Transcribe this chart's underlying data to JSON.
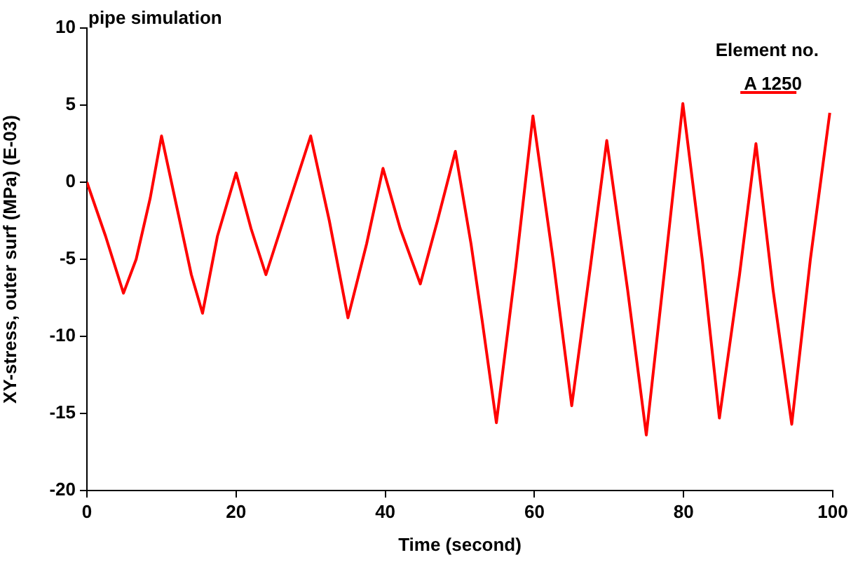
{
  "chart_data": {
    "type": "line",
    "title": "pipe simulation",
    "xlabel": "Time (second)",
    "ylabel": "XY-stress, outer surf (MPa) (E-03)",
    "legend_title": "Element no.",
    "legend": "top right",
    "grid": false,
    "marker": "none",
    "line_style": "solid",
    "xlim": [
      0,
      100
    ],
    "xticks": [
      0,
      20,
      40,
      60,
      80,
      100
    ],
    "ylim": [
      -20,
      10
    ],
    "yticks": [
      -20,
      -15,
      -10,
      -5,
      0,
      5,
      10
    ],
    "series": [
      {
        "name": "A 1250",
        "color": "#ff0000",
        "x": [
          0,
          2.5,
          4.9,
          6.6,
          8.5,
          10,
          12,
          14,
          15.5,
          17.5,
          20,
          22,
          24,
          26,
          28,
          30,
          32.5,
          35,
          37.5,
          39.7,
          42,
          44.7,
          47,
          49.4,
          51.5,
          53,
          54.9,
          57.5,
          59.8,
          62.5,
          65,
          67.5,
          69.7,
          72.5,
          75,
          77.5,
          79.9,
          82.5,
          84.8,
          87.5,
          89.7,
          92,
          94.5,
          97,
          99.6
        ],
        "values": [
          0,
          -3.5,
          -7.2,
          -5,
          -1,
          3,
          -1.5,
          -6,
          -8.5,
          -3.5,
          0.6,
          -3,
          -6,
          -3,
          0,
          3,
          -2.5,
          -8.8,
          -4,
          0.9,
          -3,
          -6.6,
          -2.5,
          2,
          -4,
          -9,
          -15.6,
          -5.5,
          4.3,
          -5,
          -14.5,
          -5.5,
          2.7,
          -7,
          -16.4,
          -5.5,
          5.1,
          -5,
          -15.3,
          -6,
          2.5,
          -7,
          -15.7,
          -5,
          4.5
        ]
      }
    ]
  }
}
